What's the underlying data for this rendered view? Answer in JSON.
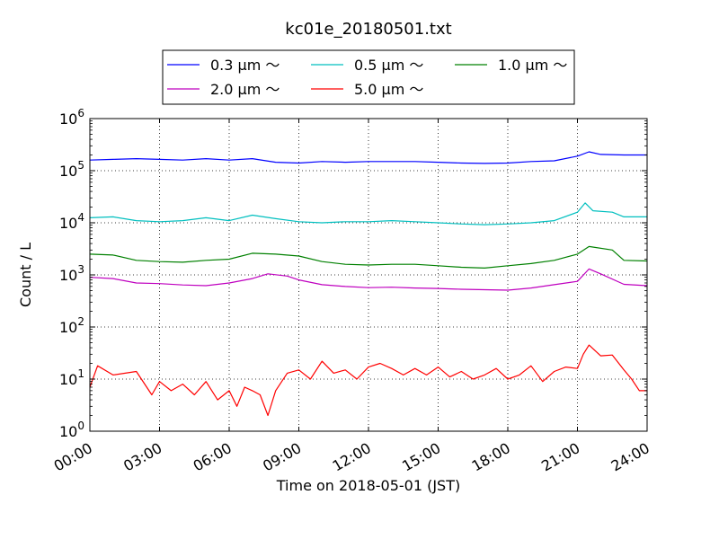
{
  "chart_data": {
    "type": "line",
    "title": "kc01e_20180501.txt",
    "xlabel": "Time on 2018-05-01 (JST)",
    "ylabel": "Count / L",
    "yscale": "log",
    "ylim": [
      1,
      1000000
    ],
    "xlim": [
      "2018-05-01 00:00",
      "2018-05-02 00:00"
    ],
    "grid": true,
    "legend_position": "top-center",
    "x_ticks": [
      "00:00",
      "03:00",
      "06:00",
      "09:00",
      "12:00",
      "15:00",
      "18:00",
      "21:00",
      "24:00"
    ],
    "y_ticks": [
      {
        "value": 1,
        "base": "10",
        "exp": "0"
      },
      {
        "value": 10,
        "base": "10",
        "exp": "1"
      },
      {
        "value": 100,
        "base": "10",
        "exp": "2"
      },
      {
        "value": 1000,
        "base": "10",
        "exp": "3"
      },
      {
        "value": 10000,
        "base": "10",
        "exp": "4"
      },
      {
        "value": 100000,
        "base": "10",
        "exp": "5"
      },
      {
        "value": 1000000,
        "base": "10",
        "exp": "6"
      }
    ],
    "series": [
      {
        "name": "0.3 μm ～",
        "color": "#0000ff",
        "points": [
          [
            "00:00",
            160000
          ],
          [
            "01:00",
            165000
          ],
          [
            "02:00",
            170000
          ],
          [
            "03:00",
            165000
          ],
          [
            "04:00",
            160000
          ],
          [
            "05:00",
            170000
          ],
          [
            "06:00",
            160000
          ],
          [
            "07:00",
            170000
          ],
          [
            "08:00",
            145000
          ],
          [
            "09:00",
            140000
          ],
          [
            "10:00",
            150000
          ],
          [
            "11:00",
            145000
          ],
          [
            "12:00",
            150000
          ],
          [
            "13:00",
            150000
          ],
          [
            "14:00",
            150000
          ],
          [
            "15:00",
            145000
          ],
          [
            "16:00",
            140000
          ],
          [
            "17:00",
            138000
          ],
          [
            "18:00",
            140000
          ],
          [
            "19:00",
            150000
          ],
          [
            "20:00",
            155000
          ],
          [
            "21:00",
            190000
          ],
          [
            "21:30",
            230000
          ],
          [
            "22:00",
            205000
          ],
          [
            "23:00",
            200000
          ],
          [
            "24:00",
            200000
          ]
        ]
      },
      {
        "name": "0.5 μm ～",
        "color": "#00bfbf",
        "points": [
          [
            "00:00",
            12500
          ],
          [
            "01:00",
            13000
          ],
          [
            "02:00",
            11000
          ],
          [
            "03:00",
            10500
          ],
          [
            "04:00",
            11000
          ],
          [
            "05:00",
            12500
          ],
          [
            "06:00",
            11000
          ],
          [
            "07:00",
            14000
          ],
          [
            "08:00",
            12000
          ],
          [
            "09:00",
            10500
          ],
          [
            "10:00",
            10000
          ],
          [
            "11:00",
            10500
          ],
          [
            "12:00",
            10500
          ],
          [
            "13:00",
            11000
          ],
          [
            "14:00",
            10500
          ],
          [
            "15:00",
            10000
          ],
          [
            "16:00",
            9500
          ],
          [
            "17:00",
            9200
          ],
          [
            "18:00",
            9500
          ],
          [
            "19:00",
            10000
          ],
          [
            "20:00",
            11000
          ],
          [
            "21:00",
            16000
          ],
          [
            "21:20",
            24000
          ],
          [
            "21:40",
            17000
          ],
          [
            "22:30",
            16000
          ],
          [
            "23:00",
            13000
          ],
          [
            "24:00",
            13000
          ]
        ]
      },
      {
        "name": "1.0 μm ～",
        "color": "#008000",
        "points": [
          [
            "00:00",
            2500
          ],
          [
            "01:00",
            2400
          ],
          [
            "02:00",
            1900
          ],
          [
            "03:00",
            1800
          ],
          [
            "04:00",
            1750
          ],
          [
            "05:00",
            1900
          ],
          [
            "06:00",
            2000
          ],
          [
            "07:00",
            2600
          ],
          [
            "08:00",
            2500
          ],
          [
            "09:00",
            2300
          ],
          [
            "10:00",
            1800
          ],
          [
            "11:00",
            1600
          ],
          [
            "12:00",
            1550
          ],
          [
            "13:00",
            1600
          ],
          [
            "14:00",
            1600
          ],
          [
            "15:00",
            1500
          ],
          [
            "16:00",
            1400
          ],
          [
            "17:00",
            1350
          ],
          [
            "18:00",
            1500
          ],
          [
            "19:00",
            1650
          ],
          [
            "20:00",
            1900
          ],
          [
            "21:00",
            2500
          ],
          [
            "21:30",
            3500
          ],
          [
            "22:30",
            3000
          ],
          [
            "23:00",
            1900
          ],
          [
            "24:00",
            1850
          ]
        ]
      },
      {
        "name": "2.0 μm ～",
        "color": "#bf00bf",
        "points": [
          [
            "00:00",
            900
          ],
          [
            "01:00",
            850
          ],
          [
            "02:00",
            700
          ],
          [
            "03:00",
            680
          ],
          [
            "04:00",
            640
          ],
          [
            "05:00",
            620
          ],
          [
            "06:00",
            700
          ],
          [
            "07:00",
            850
          ],
          [
            "07:40",
            1050
          ],
          [
            "08:30",
            950
          ],
          [
            "09:00",
            800
          ],
          [
            "10:00",
            650
          ],
          [
            "11:00",
            600
          ],
          [
            "12:00",
            570
          ],
          [
            "13:00",
            580
          ],
          [
            "14:00",
            560
          ],
          [
            "15:00",
            550
          ],
          [
            "16:00",
            530
          ],
          [
            "17:00",
            520
          ],
          [
            "18:00",
            510
          ],
          [
            "19:00",
            560
          ],
          [
            "20:00",
            650
          ],
          [
            "21:00",
            750
          ],
          [
            "21:30",
            1300
          ],
          [
            "22:00",
            1050
          ],
          [
            "23:00",
            660
          ],
          [
            "24:00",
            620
          ]
        ]
      },
      {
        "name": "5.0 μm ～",
        "color": "#ff0000",
        "points": [
          [
            "00:00",
            7
          ],
          [
            "00:20",
            18
          ],
          [
            "01:00",
            12
          ],
          [
            "02:00",
            14
          ],
          [
            "02:40",
            5
          ],
          [
            "03:00",
            9
          ],
          [
            "03:30",
            6
          ],
          [
            "04:00",
            8
          ],
          [
            "04:30",
            5
          ],
          [
            "05:00",
            9
          ],
          [
            "05:30",
            4
          ],
          [
            "06:00",
            6
          ],
          [
            "06:20",
            3
          ],
          [
            "06:40",
            7
          ],
          [
            "07:00",
            6
          ],
          [
            "07:20",
            5
          ],
          [
            "07:40",
            2
          ],
          [
            "08:00",
            6
          ],
          [
            "08:30",
            13
          ],
          [
            "09:00",
            15
          ],
          [
            "09:30",
            10
          ],
          [
            "10:00",
            22
          ],
          [
            "10:30",
            13
          ],
          [
            "11:00",
            15
          ],
          [
            "11:30",
            10
          ],
          [
            "12:00",
            17
          ],
          [
            "12:30",
            20
          ],
          [
            "13:00",
            16
          ],
          [
            "13:30",
            12
          ],
          [
            "14:00",
            16
          ],
          [
            "14:30",
            12
          ],
          [
            "15:00",
            17
          ],
          [
            "15:30",
            11
          ],
          [
            "16:00",
            14
          ],
          [
            "16:30",
            10
          ],
          [
            "17:00",
            12
          ],
          [
            "17:30",
            16
          ],
          [
            "18:00",
            10
          ],
          [
            "18:30",
            12
          ],
          [
            "19:00",
            18
          ],
          [
            "19:30",
            9
          ],
          [
            "20:00",
            14
          ],
          [
            "20:30",
            17
          ],
          [
            "21:00",
            16
          ],
          [
            "21:15",
            30
          ],
          [
            "21:30",
            45
          ],
          [
            "22:00",
            28
          ],
          [
            "22:30",
            29
          ],
          [
            "23:00",
            15
          ],
          [
            "23:20",
            10
          ],
          [
            "23:40",
            6
          ],
          [
            "24:00",
            6
          ]
        ]
      }
    ]
  }
}
